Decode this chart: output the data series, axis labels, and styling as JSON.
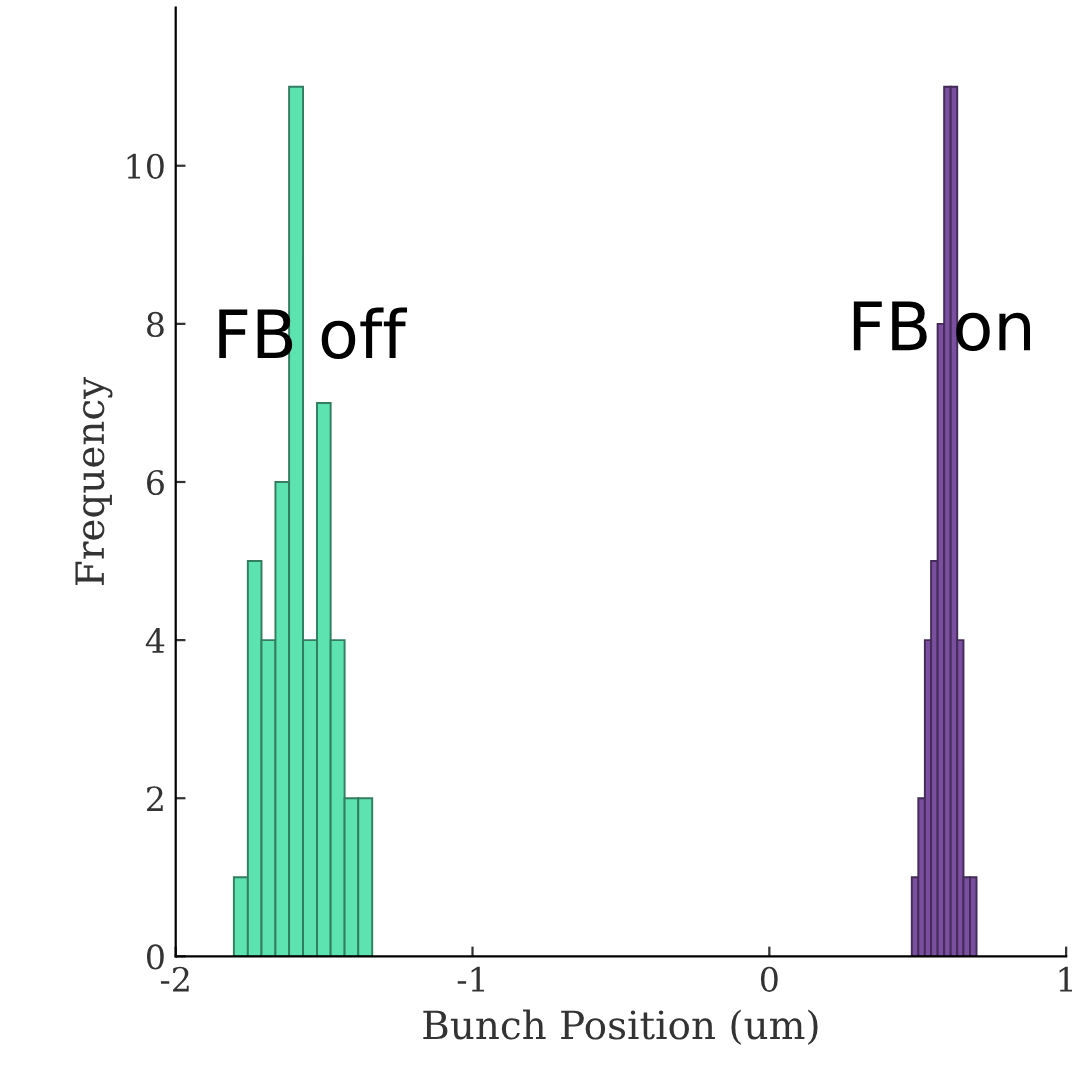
{
  "chart_data": {
    "type": "histogram",
    "xlabel": "Bunch Position (um)",
    "ylabel": "Frequency",
    "xlim": [
      -2,
      1
    ],
    "xticks": [
      -2,
      -1,
      0,
      1
    ],
    "ylim": [
      0,
      12
    ],
    "yticks": [
      0,
      2,
      4,
      6,
      8,
      10
    ],
    "grid": false,
    "legend": false,
    "bins": [
      -1.804,
      -1.757,
      -1.711,
      -1.664,
      -1.618,
      -1.571,
      -1.524,
      -1.478,
      -1.431,
      -1.385,
      -1.338,
      0.48,
      0.502,
      0.524,
      0.545,
      0.567,
      0.589,
      0.611,
      0.633,
      0.654,
      0.676,
      0.698
    ],
    "values": [
      1,
      5,
      4,
      6,
      11,
      4,
      7,
      4,
      2,
      2,
      0,
      1,
      2,
      4,
      5,
      8,
      11,
      11,
      4,
      1,
      1
    ],
    "colors": [
      "#5de3b0",
      "#5de3b0",
      "#5de3b0",
      "#5de3b0",
      "#5de3b0",
      "#5de3b0",
      "#5de3b0",
      "#5de3b0",
      "#5de3b0",
      "#5de3b0",
      "#ffffff",
      "#7b4fa0",
      "#7b4fa0",
      "#7b4fa0",
      "#7b4fa0",
      "#7b4fa0",
      "#7b4fa0",
      "#7b4fa0",
      "#7b4fa0",
      "#7b4fa0",
      "#7b4fa0"
    ],
    "annotations": [
      {
        "text": "FB off",
        "x": -1.55,
        "y": 7.8
      },
      {
        "text": "FB on",
        "x": 0.58,
        "y": 7.9
      }
    ]
  }
}
